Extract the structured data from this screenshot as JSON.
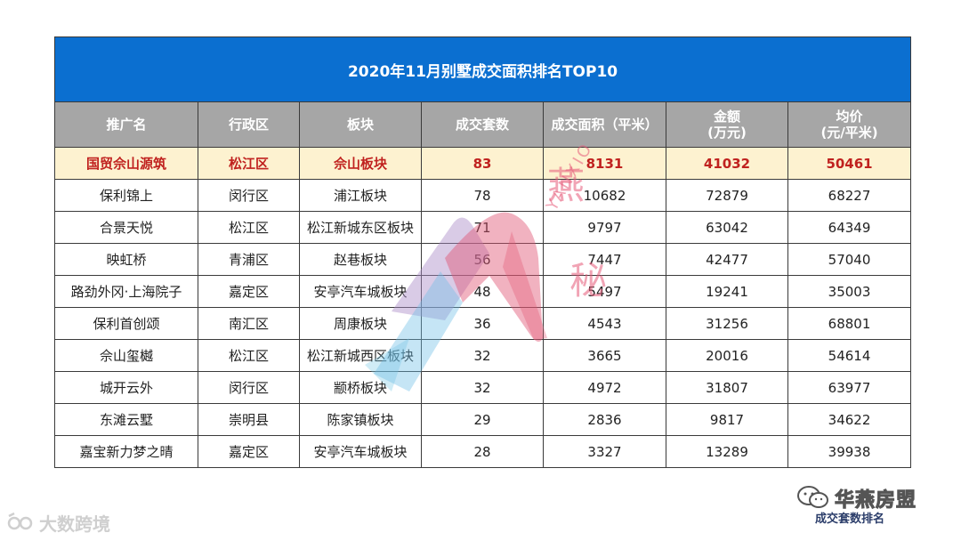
{
  "title": "2020年11月别墅成交面积排名TOP10",
  "headers": [
    "推广名",
    "行政区",
    "板块",
    "成交套数",
    "成交面积（平米）",
    "金额\n(万元)",
    "均价\n(元/平米)"
  ],
  "highlight_row": [
    "国贸佘山源筑",
    "松江区",
    "佘山板块",
    "83",
    "8131",
    "41032",
    "50461"
  ],
  "rows": [
    [
      "保利锦上",
      "闵行区",
      "浦江板块",
      "78",
      "10682",
      "72879",
      "68227"
    ],
    [
      "合景天悦",
      "松江区",
      "松江新城东区板块",
      "71",
      "9797",
      "63042",
      "64349"
    ],
    [
      "映虹桥",
      "青浦区",
      "赵巷板块",
      "56",
      "7447",
      "42477",
      "57040"
    ],
    [
      "路劲外冈·上海院子",
      "嘉定区",
      "安亭汽车城板块",
      "48",
      "5497",
      "19241",
      "35003"
    ],
    [
      "保利首创颂",
      "南汇区",
      "周康板块",
      "36",
      "4543",
      "31256",
      "68801"
    ],
    [
      "佘山玺樾",
      "松江区",
      "松江新城西区板块",
      "32",
      "3665",
      "20016",
      "54614"
    ],
    [
      "城开云外",
      "闵行区",
      "颛桥板块",
      "32",
      "4972",
      "31807",
      "63977"
    ],
    [
      "东滩云墅",
      "崇明县",
      "陈家镇板块",
      "29",
      "2836",
      "9817",
      "34622"
    ],
    [
      "嘉宝新力梦之晴",
      "嘉定区",
      "安亭汽车城板块",
      "28",
      "3327",
      "13289",
      "39938"
    ]
  ],
  "watermark": {
    "text_top": "燕",
    "text_mid": "YANXIO",
    "text_bottom": "秘"
  },
  "footer": {
    "left_logo_text": "大数跨境",
    "brand_name": "华燕房盟",
    "caption": "成交套数排名"
  },
  "colors": {
    "title_bg": "#0b6fd0",
    "header_bg": "#a6a6a6",
    "highlight_bg": "#fdf2d0",
    "highlight_text": "#c0221f"
  }
}
